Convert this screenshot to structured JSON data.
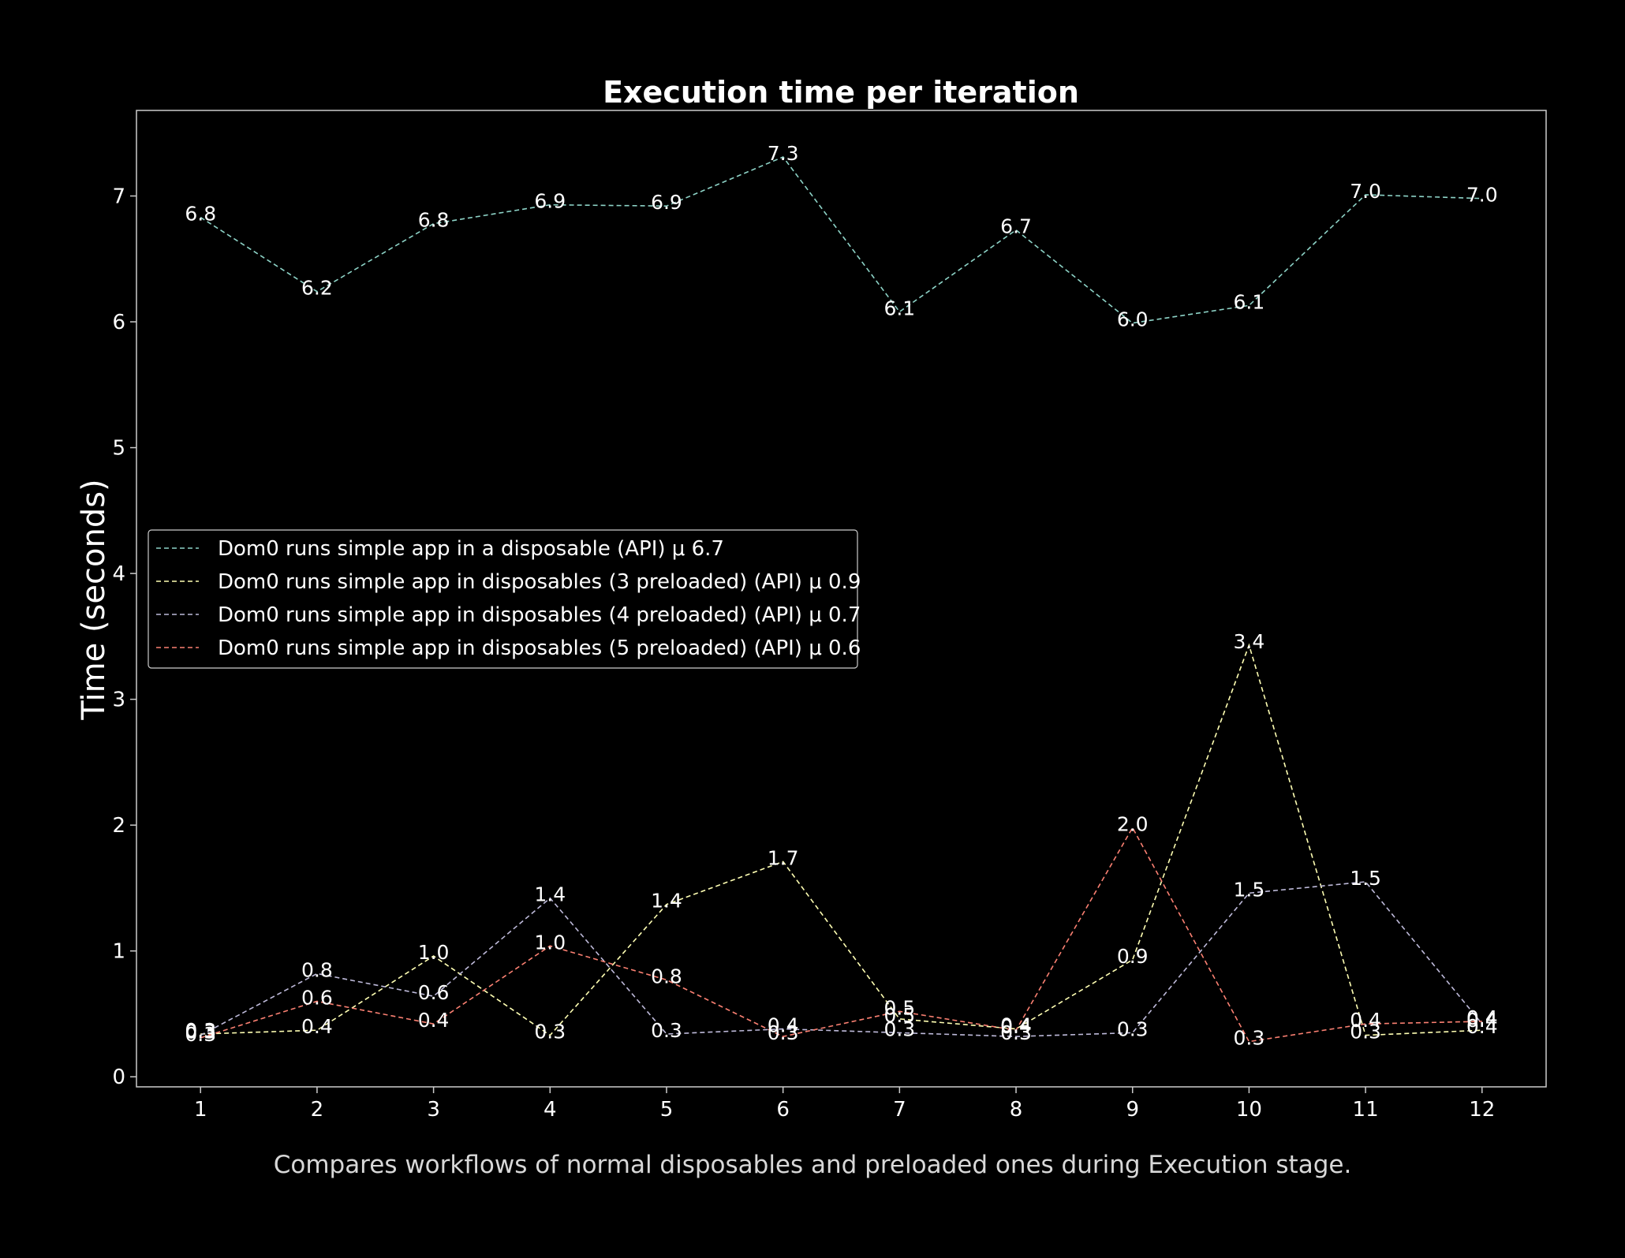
{
  "chart_data": {
    "type": "line",
    "title": "Execution time per iteration",
    "xlabel": "",
    "ylabel": "Time (seconds)",
    "caption": "Compares workflows of normal disposables and preloaded ones during Execution stage.",
    "x": [
      1,
      2,
      3,
      4,
      5,
      6,
      7,
      8,
      9,
      10,
      11,
      12
    ],
    "xlim": [
      0.45,
      12.55
    ],
    "ylim": [
      -0.08,
      7.68
    ],
    "yticks": [
      0,
      1,
      2,
      3,
      4,
      5,
      6,
      7
    ],
    "grid": false,
    "legend_position": "center-left",
    "series": [
      {
        "name": "Dom0 runs simple app in a disposable (API) μ 6.7",
        "color": "#8dd3c7",
        "values": [
          6.83,
          6.24,
          6.78,
          6.93,
          6.92,
          7.31,
          6.08,
          6.73,
          5.99,
          6.13,
          7.01,
          6.98
        ],
        "labels": [
          "6.8",
          "6.2",
          "6.8",
          "6.9",
          "6.9",
          "7.3",
          "6.1",
          "6.7",
          "6.0",
          "6.1",
          "7.0",
          "7.0"
        ]
      },
      {
        "name": "Dom0 runs simple app in disposables (3 preloaded) (API) μ 0.9",
        "color": "#ffffb3",
        "values": [
          0.34,
          0.37,
          0.96,
          0.33,
          1.37,
          1.71,
          0.46,
          0.38,
          0.93,
          3.43,
          0.33,
          0.37
        ],
        "labels": [
          "0.3",
          "0.4",
          "1.0",
          "0.3",
          "1.4",
          "1.7",
          "0.5",
          "0.4",
          "0.9",
          "3.4",
          "0.3",
          "0.4"
        ]
      },
      {
        "name": "Dom0 runs simple app in disposables (4 preloaded) (API) μ 0.7",
        "color": "#bebada",
        "values": [
          0.33,
          0.82,
          0.64,
          1.42,
          0.34,
          0.38,
          0.35,
          0.32,
          0.35,
          1.46,
          1.55,
          0.42
        ],
        "labels": [
          "0.3",
          "0.8",
          "0.6",
          "1.4",
          "0.3",
          "0.4",
          "0.3",
          "0.3",
          "0.3",
          "1.5",
          "1.5",
          "0.4"
        ]
      },
      {
        "name": "Dom0 runs simple app in disposables (5 preloaded) (API) μ 0.6",
        "color": "#fb8072",
        "values": [
          0.31,
          0.6,
          0.42,
          1.04,
          0.77,
          0.32,
          0.52,
          0.37,
          1.98,
          0.28,
          0.42,
          0.44
        ],
        "labels": [
          "0.3",
          "0.6",
          "0.4",
          "1.0",
          "0.8",
          "0.3",
          "0.5",
          "0.4",
          "2.0",
          "0.3",
          "0.4",
          "0.4"
        ]
      }
    ]
  }
}
